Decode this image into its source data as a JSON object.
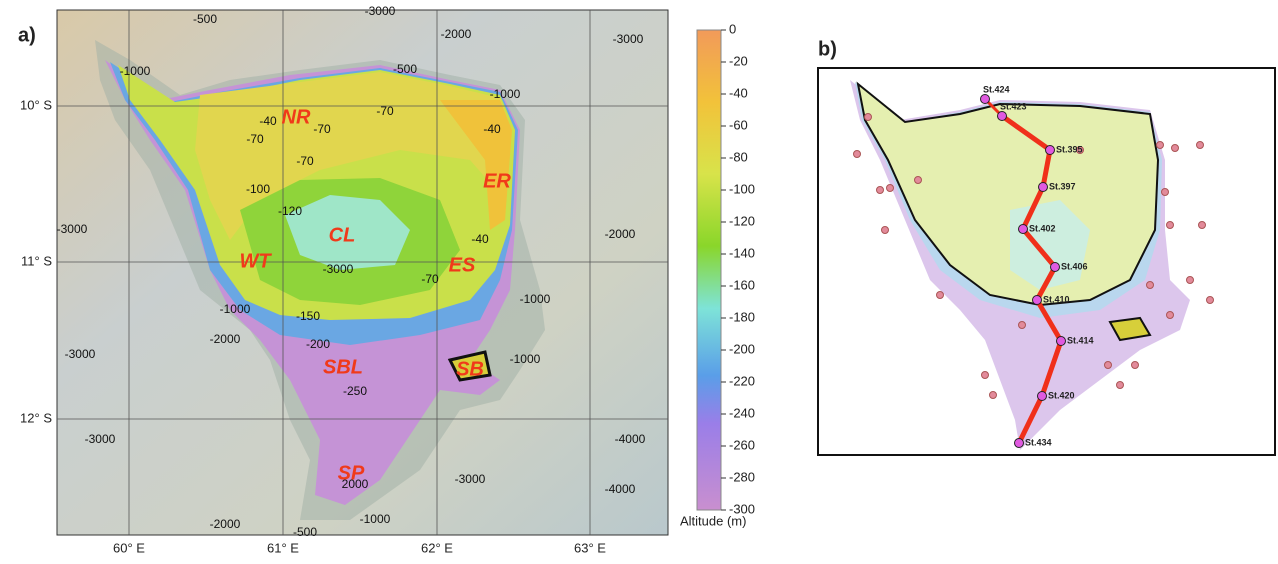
{
  "panel_a": {
    "label": "a)",
    "lon_labels": [
      "60° E",
      "61° E",
      "62° E",
      "63° E"
    ],
    "lat_labels": [
      "10° S",
      "11° S",
      "12° S"
    ],
    "region_labels": [
      "NR",
      "ER",
      "CL",
      "WT",
      "ES",
      "SBL",
      "SB",
      "SP"
    ],
    "contour_labels": [
      "-500",
      "-2000",
      "-3000",
      "-1000",
      "-500",
      "-1000",
      "-40",
      "-70",
      "-70",
      "-70",
      "-40",
      "-70",
      "-100",
      "-120",
      "-40",
      "-70",
      "-150",
      "-200",
      "-250",
      "-3000",
      "-3000",
      "-2000",
      "-1000",
      "-2000",
      "-3000",
      "-1000",
      "2000",
      "-3000",
      "-4000",
      "-4000",
      "-1000",
      "-3000",
      "-2000",
      "-3000",
      "-500",
      "-1000"
    ]
  },
  "colorbar": {
    "ticks": [
      0,
      -20,
      -40,
      -60,
      -80,
      -100,
      -120,
      -140,
      -160,
      -180,
      -200,
      -220,
      -240,
      -260,
      -280,
      -300
    ],
    "title": "Altitude (m)"
  },
  "panel_b": {
    "label": "b)",
    "stations": [
      "St.424",
      "St.423",
      "St.395",
      "St.397",
      "St.402",
      "St.406",
      "St.410",
      "St.414",
      "St.420",
      "St.434"
    ]
  }
}
